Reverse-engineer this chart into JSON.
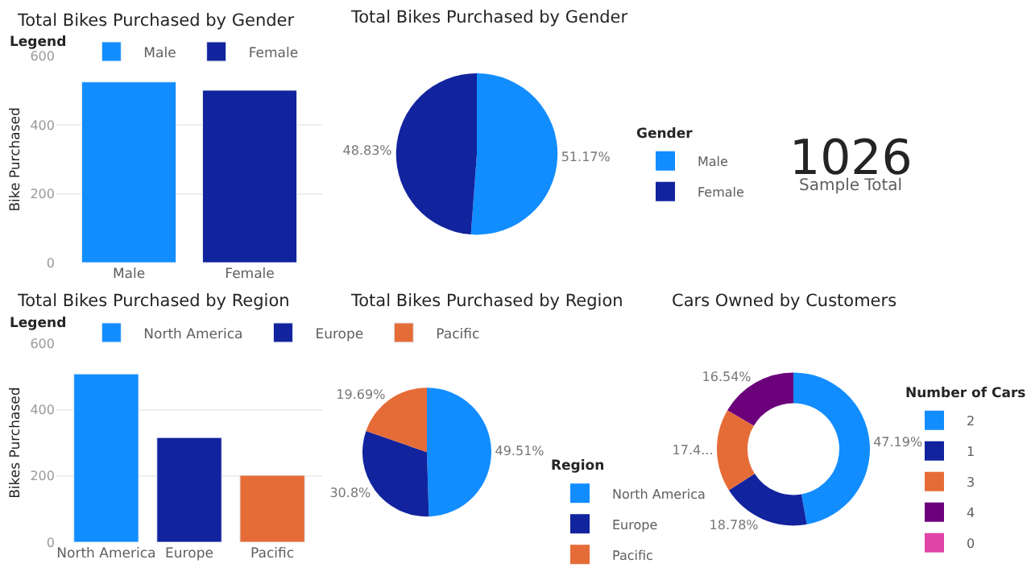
{
  "chart_data": [
    {
      "type": "bar",
      "title": "Total Bikes Purchased by Gender",
      "categories": [
        "Male",
        "Female"
      ],
      "series": [
        {
          "name": "Male",
          "color": "#118dff",
          "values": [
            525,
            null
          ]
        },
        {
          "name": "Female",
          "color": "#12239e",
          "values": [
            null,
            501
          ]
        }
      ],
      "ylabel": "Bike Purchased",
      "ylim": [
        0,
        600
      ],
      "yticks": [
        0,
        200,
        400,
        600
      ],
      "grid": "y",
      "legend": "top",
      "legend_title": "Legend"
    },
    {
      "type": "pie",
      "title": "Total Bikes Purchased by Gender",
      "categories": [
        "Male",
        "Female"
      ],
      "values": [
        51.17,
        48.83
      ],
      "colors": [
        "#118dff",
        "#12239e"
      ],
      "value_labels": [
        "51.17%",
        "48.83%"
      ],
      "legend": "right",
      "legend_title": "Gender"
    },
    {
      "type": "other",
      "annotations": [
        "1026",
        "Sample Total"
      ]
    },
    {
      "type": "bar",
      "title": "Total Bikes Purchased by Region",
      "categories": [
        "North America",
        "Europe",
        "Pacific"
      ],
      "series": [
        {
          "name": "North America",
          "color": "#118dff",
          "values": [
            508,
            null,
            null
          ]
        },
        {
          "name": "Europe",
          "color": "#12239e",
          "values": [
            null,
            316,
            null
          ]
        },
        {
          "name": "Pacific",
          "color": "#e66c37",
          "values": [
            null,
            null,
            202
          ]
        }
      ],
      "ylabel": "Bikes Purchased",
      "ylim": [
        0,
        600
      ],
      "yticks": [
        0,
        200,
        400,
        600
      ],
      "grid": "y",
      "legend": "top",
      "legend_title": "Legend"
    },
    {
      "type": "pie",
      "title": "Total Bikes Purchased by Region",
      "categories": [
        "North America",
        "Europe",
        "Pacific"
      ],
      "values": [
        49.51,
        30.8,
        19.69
      ],
      "colors": [
        "#118dff",
        "#12239e",
        "#e66c37"
      ],
      "value_labels": [
        "49.51%",
        "30.8%",
        "19.69%"
      ],
      "legend": "right",
      "legend_title": "Region"
    },
    {
      "type": "donut",
      "title": "Cars Owned by Customers",
      "categories": [
        "2",
        "1",
        "3",
        "4",
        "0"
      ],
      "values": [
        47.19,
        18.78,
        17.49,
        16.54,
        0
      ],
      "colors": [
        "#118dff",
        "#12239e",
        "#e66c37",
        "#6b007b",
        "#e044a7"
      ],
      "value_labels": [
        "47.19%",
        "18.78%",
        "17.4...",
        "16.54%",
        null
      ],
      "legend": "right",
      "legend_title": "Number of Cars"
    }
  ]
}
